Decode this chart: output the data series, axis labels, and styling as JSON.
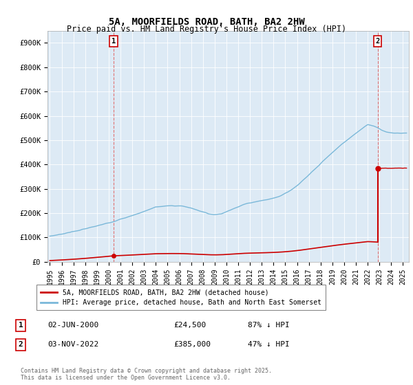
{
  "title": "5A, MOORFIELDS ROAD, BATH, BA2 2HW",
  "subtitle": "Price paid vs. HM Land Registry's House Price Index (HPI)",
  "hpi_color": "#7ab8d9",
  "sale_color": "#cc0000",
  "dashed_color": "#e06060",
  "bg_color": "#ddeaf5",
  "ylim": [
    0,
    950000
  ],
  "yticks": [
    0,
    100000,
    200000,
    300000,
    400000,
    500000,
    600000,
    700000,
    800000,
    900000
  ],
  "ytick_labels": [
    "£0",
    "£100K",
    "£200K",
    "£300K",
    "£400K",
    "£500K",
    "£600K",
    "£700K",
    "£800K",
    "£900K"
  ],
  "xlim_start": 1994.8,
  "xlim_end": 2025.5,
  "sale1_year": 2000.42,
  "sale1_price": 24500,
  "sale2_year": 2022.84,
  "sale2_price": 385000,
  "legend_line1": "5A, MOORFIELDS ROAD, BATH, BA2 2HW (detached house)",
  "legend_line2": "HPI: Average price, detached house, Bath and North East Somerset",
  "annotation1_label": "1",
  "annotation1_date": "02-JUN-2000",
  "annotation1_price": "£24,500",
  "annotation1_hpi": "87% ↓ HPI",
  "annotation2_label": "2",
  "annotation2_date": "03-NOV-2022",
  "annotation2_price": "£385,000",
  "annotation2_hpi": "47% ↓ HPI",
  "footer": "Contains HM Land Registry data © Crown copyright and database right 2025.\nThis data is licensed under the Open Government Licence v3.0."
}
